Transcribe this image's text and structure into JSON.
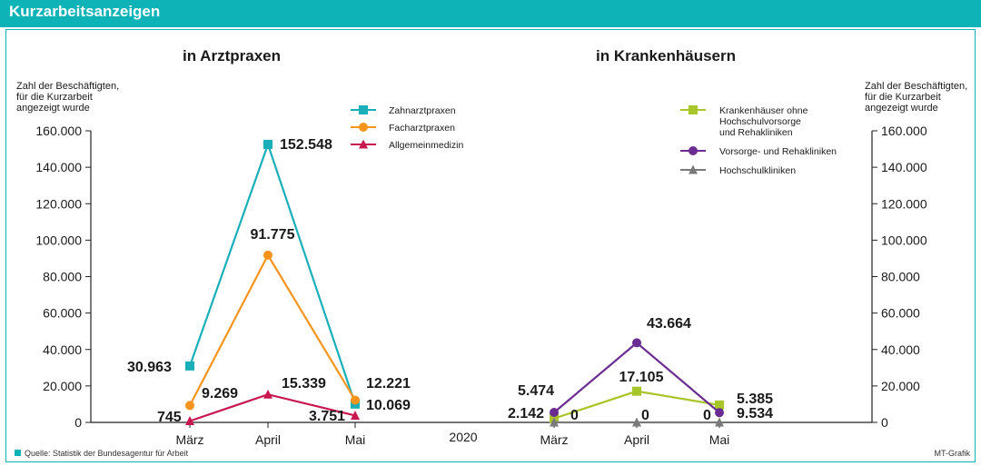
{
  "header": {
    "title": "Kurzarbeitsanzeigen"
  },
  "footer": {
    "source": "Quelle: Statistik der Bundesagentur für Arbeit",
    "credit": "MT-Grafik"
  },
  "shared": {
    "ylabel": [
      "Zahl der Beschäftigten,",
      "für die Kurzarbeit",
      "angezeigt wurde"
    ],
    "ticks": [
      "0",
      "20.000",
      "40.000",
      "60.000",
      "80.000",
      "100.000",
      "120.000",
      "140.000",
      "160.000"
    ],
    "year_label": "2020"
  },
  "chart_data": [
    {
      "type": "line",
      "title": "in Arztpraxen",
      "categories": [
        "März",
        "April",
        "Mai"
      ],
      "ylim": [
        0,
        160000
      ],
      "ylabel": "Zahl der Beschäftigten, für die Kurzarbeit angezeigt wurde",
      "legend": "top-right",
      "series": [
        {
          "name": "Zahnarztpraxen",
          "values": [
            30963,
            152548,
            10069
          ],
          "labels": [
            "30.963",
            "152.548",
            "10.069"
          ],
          "color": "#1aafb8",
          "marker": "square"
        },
        {
          "name": "Facharztpraxen",
          "values": [
            9269,
            91775,
            12221
          ],
          "labels": [
            "9.269",
            "91.775",
            "12.221"
          ],
          "color": "#f7941d",
          "marker": "circle"
        },
        {
          "name": "Allgemeinmedizin",
          "values": [
            745,
            15339,
            3751
          ],
          "labels": [
            "745",
            "15.339",
            "3.751"
          ],
          "color": "#c8174f",
          "marker": "triangle"
        }
      ]
    },
    {
      "type": "line",
      "title": "in Krankenhäusern",
      "categories": [
        "März",
        "April",
        "Mai"
      ],
      "ylim": [
        0,
        160000
      ],
      "ylabel": "Zahl der Beschäftigten, für die Kurzarbeit angezeigt wurde",
      "legend": "top-right",
      "series": [
        {
          "name": "Krankenhäuser ohne Hochschulvorsorge und Rehakliniken",
          "legend_lines": [
            "Krankenhäuser ohne",
            "Hochschulvorsorge",
            "und Rehakliniken"
          ],
          "values": [
            2142,
            17105,
            9534
          ],
          "labels": [
            "2.142",
            "17.105",
            "9.534"
          ],
          "color": "#a8c62a",
          "marker": "square"
        },
        {
          "name": "Vorsorge- und Rehakliniken",
          "legend_lines": [
            "Vorsorge- und Rehakliniken"
          ],
          "values": [
            5474,
            43664,
            5385
          ],
          "labels": [
            "5.474",
            "43.664",
            "5.385"
          ],
          "color": "#6a2c91",
          "marker": "circle"
        },
        {
          "name": "Hochschulkliniken",
          "legend_lines": [
            "Hochschulkliniken"
          ],
          "values": [
            0,
            0,
            0
          ],
          "labels": [
            "0",
            "0",
            "0"
          ],
          "color": "#7a7a7a",
          "marker": "triangle"
        }
      ]
    }
  ]
}
